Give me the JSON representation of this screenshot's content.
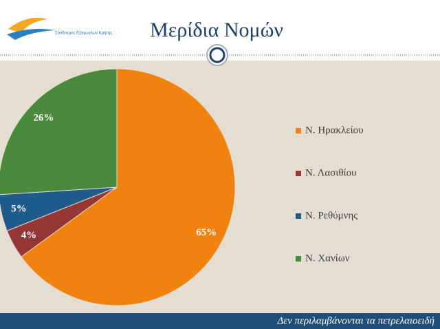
{
  "logo": "Σύνδεσμος Εξαγωγέων Κρήτης",
  "footer": "Δεν περιλαμβάνονται τα πετρελαιοειδή",
  "chart_data": {
    "type": "pie",
    "title": "Μερίδια Νομών",
    "categories": [
      "Ν. Ηρακλείου",
      "Ν. Λασιθίου",
      "Ν. Ρεθύμνης",
      "Ν. Χανίων"
    ],
    "values": [
      65,
      4,
      5,
      26
    ],
    "value_labels": [
      "65%",
      "4%",
      "5%",
      "26%"
    ],
    "colors": [
      "#f0820f",
      "#953735",
      "#1f5c8b",
      "#4a8a3c"
    ],
    "legend": "right"
  }
}
